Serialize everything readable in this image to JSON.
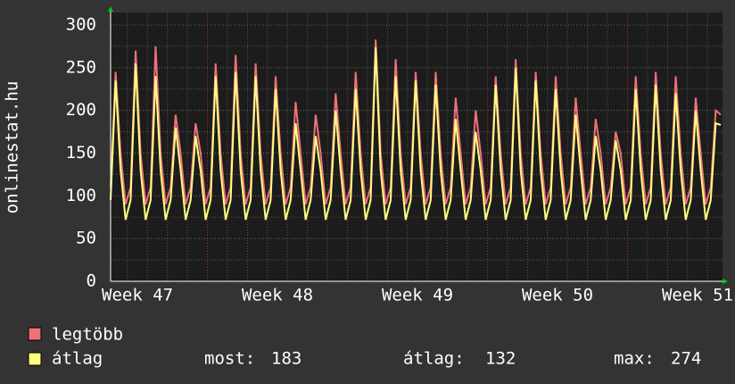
{
  "chart_data": {
    "type": "line",
    "y_label": "onlinestat.hu",
    "x": [
      0,
      0.25,
      0.5,
      0.75,
      1,
      1.25,
      1.5,
      1.75,
      2,
      2.25,
      2.5,
      2.75,
      3,
      3.25,
      3.5,
      3.75,
      4,
      4.25,
      4.5,
      4.75,
      5,
      5.25,
      5.5,
      5.75,
      6,
      6.25,
      6.5,
      6.75,
      7,
      7.25,
      7.5,
      7.75,
      8,
      8.25,
      8.5,
      8.75,
      9,
      9.25,
      9.5,
      9.75,
      10,
      10.25,
      10.5,
      10.75,
      11,
      11.25,
      11.5,
      11.75,
      12,
      12.25,
      12.5,
      12.75,
      13,
      13.25,
      13.5,
      13.75,
      14,
      14.25,
      14.5,
      14.75,
      15,
      15.25,
      15.5,
      15.75,
      16,
      16.25,
      16.5,
      16.75,
      17,
      17.25,
      17.5,
      17.75,
      18,
      18.25,
      18.5,
      18.75,
      19,
      19.25,
      19.5,
      19.75,
      20,
      20.25,
      20.5,
      20.75,
      21,
      21.25,
      21.5,
      21.75,
      22,
      22.25,
      22.5,
      22.75,
      23,
      23.25,
      23.5,
      23.75,
      24,
      24.25,
      24.5,
      24.75,
      25,
      25.25,
      25.5,
      25.75,
      26,
      26.25,
      26.5,
      26.75,
      27,
      27.25,
      27.5,
      27.75,
      28,
      28.25,
      28.5,
      28.75,
      29,
      29.25,
      29.5,
      29.75,
      30,
      30.25,
      30.5
    ],
    "series": [
      {
        "name": "legtöbb",
        "color": "#f07078",
        "values": [
          110,
          245,
          150,
          90,
          110,
          270,
          150,
          90,
          110,
          275,
          150,
          90,
          110,
          195,
          150,
          90,
          110,
          185,
          150,
          90,
          110,
          255,
          150,
          90,
          110,
          265,
          150,
          90,
          110,
          255,
          150,
          90,
          110,
          240,
          150,
          90,
          110,
          210,
          150,
          90,
          110,
          195,
          150,
          90,
          110,
          220,
          150,
          90,
          110,
          245,
          150,
          90,
          110,
          283,
          150,
          90,
          110,
          260,
          150,
          90,
          110,
          245,
          150,
          90,
          110,
          245,
          150,
          90,
          110,
          215,
          150,
          90,
          110,
          200,
          150,
          90,
          110,
          240,
          150,
          90,
          110,
          260,
          150,
          90,
          110,
          245,
          150,
          90,
          110,
          240,
          150,
          90,
          110,
          215,
          150,
          90,
          110,
          190,
          150,
          90,
          110,
          175,
          150,
          90,
          110,
          240,
          150,
          90,
          110,
          245,
          150,
          90,
          110,
          240,
          150,
          90,
          110,
          215,
          150,
          90,
          110,
          200,
          195
        ]
      },
      {
        "name": "átlag",
        "color": "#ffff80",
        "values": [
          95,
          235,
          130,
          72,
          95,
          255,
          130,
          72,
          95,
          240,
          130,
          72,
          95,
          180,
          130,
          72,
          95,
          170,
          130,
          72,
          95,
          240,
          130,
          72,
          95,
          245,
          130,
          72,
          95,
          240,
          130,
          72,
          95,
          225,
          130,
          72,
          95,
          185,
          130,
          72,
          95,
          170,
          130,
          72,
          95,
          200,
          130,
          72,
          95,
          225,
          130,
          72,
          95,
          274,
          130,
          72,
          95,
          240,
          130,
          72,
          95,
          235,
          130,
          72,
          95,
          230,
          130,
          72,
          95,
          190,
          130,
          72,
          95,
          175,
          130,
          72,
          95,
          230,
          130,
          72,
          95,
          250,
          130,
          72,
          95,
          235,
          130,
          72,
          95,
          225,
          130,
          72,
          95,
          195,
          130,
          72,
          95,
          170,
          130,
          72,
          95,
          165,
          130,
          72,
          95,
          225,
          130,
          72,
          95,
          230,
          130,
          72,
          95,
          220,
          130,
          72,
          95,
          200,
          130,
          72,
          95,
          185,
          183
        ]
      }
    ],
    "xlim": [
      0,
      30.5
    ],
    "xticks": [
      {
        "value": 1.34,
        "label": "Week 47"
      },
      {
        "value": 8.34,
        "label": "Week 48"
      },
      {
        "value": 15.34,
        "label": "Week 49"
      },
      {
        "value": 22.34,
        "label": "Week 50"
      },
      {
        "value": 29.34,
        "label": "Week 51"
      }
    ],
    "ylim": [
      0,
      300
    ],
    "yticks": [
      0,
      50,
      100,
      150,
      200,
      250,
      300
    ],
    "grid": true,
    "stats": [
      {
        "label": "most:",
        "value": 183
      },
      {
        "label": "átlag:",
        "value": 132
      },
      {
        "label": "max:",
        "value": 274
      }
    ]
  }
}
